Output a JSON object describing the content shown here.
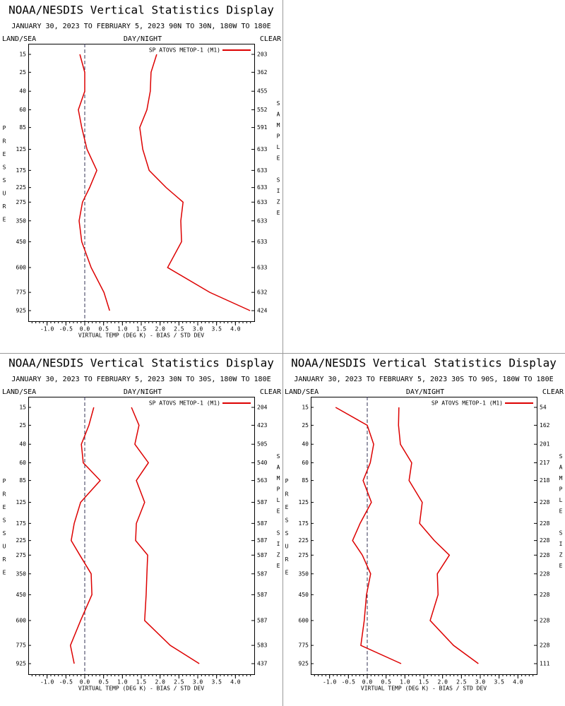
{
  "chart_data": [
    {
      "type": "line",
      "title": "NOAA/NESDIS Vertical Statistics Display",
      "subtitle": "JANUARY 30, 2023 TO FEBRUARY 5, 2023 90N TO 30N, 180W TO 180E",
      "left_header": "LAND/SEA",
      "center_header": "DAY/NIGHT",
      "right_header": "CLEAR",
      "y_label": "PRESSURE",
      "y2_label": "SAMPLE SIZE",
      "x_label": "VIRTUAL TEMP (DEG K) - BIAS / STD DEV",
      "legend": "SP ATOVS METOP-1 (M1)",
      "levels": [
        15,
        25,
        40,
        60,
        85,
        125,
        175,
        225,
        275,
        350,
        450,
        600,
        775,
        925
      ],
      "ylim": [
        15,
        925
      ],
      "y_reversed": true,
      "sample_size": [
        203,
        362,
        455,
        552,
        591,
        633,
        633,
        633,
        633,
        633,
        633,
        633,
        632,
        424
      ],
      "xlim": [
        -1.5,
        4.5
      ],
      "xticks": [
        {
          "value": -1,
          "label": "-1.0"
        },
        {
          "value": -0.5,
          "label": "-0.5"
        },
        {
          "value": 0,
          "label": "0.0"
        },
        {
          "value": 0.5,
          "label": "0.5"
        },
        {
          "value": 1,
          "label": "1.0"
        },
        {
          "value": 1.5,
          "label": "1.5"
        },
        {
          "value": 2,
          "label": "2.0"
        },
        {
          "value": 2.5,
          "label": "2.5"
        },
        {
          "value": 3,
          "label": "3.0"
        },
        {
          "value": 3.5,
          "label": "3.5"
        },
        {
          "value": 4,
          "label": "4.0"
        }
      ],
      "series": [
        {
          "color": "#dd0000",
          "values": [
            -0.13,
            0,
            0,
            -0.17,
            -0.08,
            0.06,
            0.32,
            0.13,
            -0.06,
            -0.15,
            -0.08,
            0.17,
            0.51,
            0.66
          ]
        },
        {
          "color": "#dd0000",
          "values": [
            1.91,
            1.76,
            1.74,
            1.65,
            1.46,
            1.54,
            1.71,
            2.16,
            2.61,
            2.55,
            2.57,
            2.2,
            3.32,
            4.39
          ]
        }
      ]
    },
    {
      "type": "line",
      "title": "NOAA/NESDIS Vertical Statistics Display",
      "subtitle": "JANUARY 30, 2023 TO FEBRUARY 5, 2023 30N TO 30S, 180W TO 180E",
      "left_header": "LAND/SEA",
      "center_header": "DAY/NIGHT",
      "right_header": "CLEAR",
      "y_label": "PRESSURE",
      "y2_label": "SAMPLE SIZE",
      "x_label": "VIRTUAL TEMP (DEG K) - BIAS / STD DEV",
      "legend": "SP ATOVS METOP-1 (M1)",
      "levels": [
        15,
        25,
        40,
        60,
        85,
        125,
        175,
        225,
        275,
        350,
        450,
        600,
        775,
        925
      ],
      "ylim": [
        15,
        925
      ],
      "y_reversed": true,
      "sample_size": [
        204,
        423,
        505,
        540,
        563,
        587,
        587,
        587,
        587,
        587,
        587,
        587,
        583,
        437
      ],
      "xlim": [
        -1.5,
        4.5
      ],
      "xticks": [
        {
          "value": -1,
          "label": "-1.0"
        },
        {
          "value": -0.5,
          "label": "-0.5"
        },
        {
          "value": 0,
          "label": "0.0"
        },
        {
          "value": 0.5,
          "label": "0.5"
        },
        {
          "value": 1,
          "label": "1.0"
        },
        {
          "value": 1.5,
          "label": "1.5"
        },
        {
          "value": 2,
          "label": "2.0"
        },
        {
          "value": 2.5,
          "label": "2.5"
        },
        {
          "value": 3,
          "label": "3.0"
        },
        {
          "value": 3.5,
          "label": "3.5"
        },
        {
          "value": 4,
          "label": "4.0"
        }
      ],
      "series": [
        {
          "color": "#dd0000",
          "values": [
            0.24,
            0.11,
            -0.09,
            -0.04,
            0.41,
            -0.11,
            -0.28,
            -0.36,
            -0.13,
            0.17,
            0.19,
            -0.11,
            -0.38,
            -0.28
          ]
        },
        {
          "color": "#dd0000",
          "values": [
            1.24,
            1.44,
            1.33,
            1.69,
            1.37,
            1.59,
            1.37,
            1.35,
            1.67,
            1.65,
            1.63,
            1.59,
            2.27,
            3.04
          ]
        }
      ]
    },
    {
      "type": "line",
      "title": "NOAA/NESDIS Vertical Statistics Display",
      "subtitle": "JANUARY 30, 2023 TO FEBRUARY 5, 2023 30S TO 90S, 180W TO 180E",
      "left_header": "LAND/SEA",
      "center_header": "DAY/NIGHT",
      "right_header": "CLEAR",
      "y_label": "PRESSURE",
      "y2_label": "SAMPLE SIZE",
      "x_label": "VIRTUAL TEMP (DEG K) - BIAS / STD DEV",
      "legend": "SP ATOVS METOP-1 (M1)",
      "levels": [
        15,
        25,
        40,
        60,
        85,
        125,
        175,
        225,
        275,
        350,
        450,
        600,
        775,
        925
      ],
      "ylim": [
        15,
        925
      ],
      "y_reversed": true,
      "sample_size": [
        54,
        162,
        201,
        217,
        218,
        228,
        228,
        228,
        228,
        228,
        228,
        228,
        228,
        111
      ],
      "xlim": [
        -1.5,
        4.5
      ],
      "xticks": [
        {
          "value": -1,
          "label": "-1.0"
        },
        {
          "value": -0.5,
          "label": "-0.5"
        },
        {
          "value": 0,
          "label": "0.0"
        },
        {
          "value": 0.5,
          "label": "0.5"
        },
        {
          "value": 1,
          "label": "1.0"
        },
        {
          "value": 1.5,
          "label": "1.5"
        },
        {
          "value": 2,
          "label": "2.0"
        },
        {
          "value": 2.5,
          "label": "2.5"
        },
        {
          "value": 3,
          "label": "3.0"
        },
        {
          "value": 3.5,
          "label": "3.5"
        },
        {
          "value": 4,
          "label": "4.0"
        }
      ],
      "series": [
        {
          "color": "#dd0000",
          "values": [
            -0.84,
            0,
            0.17,
            0.08,
            -0.11,
            0.11,
            -0.19,
            -0.39,
            -0.13,
            0.09,
            -0.02,
            -0.08,
            -0.17,
            0.9
          ]
        },
        {
          "color": "#dd0000",
          "values": [
            0.84,
            0.83,
            0.88,
            1.18,
            1.11,
            1.46,
            1.39,
            1.78,
            2.18,
            1.86,
            1.88,
            1.67,
            2.29,
            2.95
          ]
        }
      ]
    }
  ]
}
